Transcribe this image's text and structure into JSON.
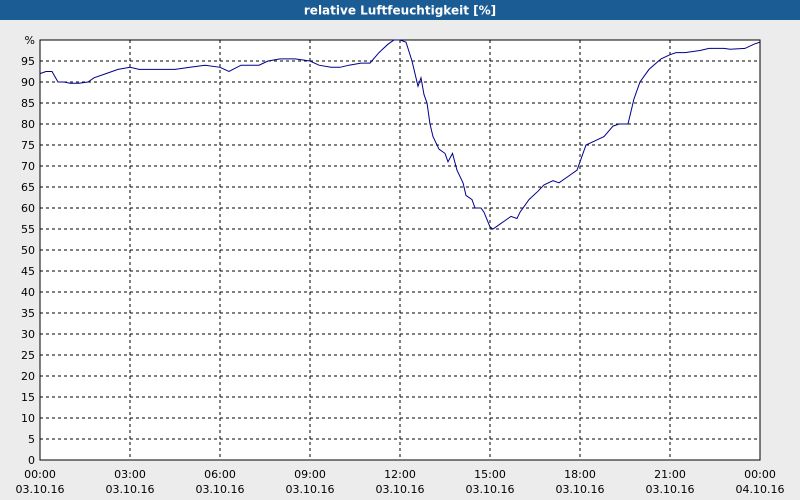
{
  "chart_data": {
    "type": "line",
    "title": "relative Luftfeuchtigkeit [%]",
    "x": [
      0,
      0.2,
      0.4,
      0.6,
      0.8,
      1.0,
      1.3,
      1.6,
      1.8,
      2.2,
      2.6,
      3.0,
      3.3,
      4.0,
      4.5,
      5.0,
      5.5,
      6.0,
      6.3,
      6.7,
      7.0,
      7.3,
      7.6,
      8.0,
      8.5,
      9.0,
      9.3,
      9.7,
      10.0,
      10.3,
      10.7,
      11.0,
      11.3,
      11.6,
      11.8,
      12.0,
      12.2,
      12.4,
      12.5,
      12.6,
      12.7,
      12.8,
      12.9,
      13.0,
      13.1,
      13.3,
      13.5,
      13.6,
      13.75,
      13.9,
      14.1,
      14.2,
      14.4,
      14.5,
      14.7,
      14.8,
      15.0,
      15.1,
      15.3,
      15.5,
      15.7,
      15.9,
      16.0,
      16.3,
      16.6,
      16.8,
      17.1,
      17.3,
      17.6,
      17.9,
      18.0,
      18.2,
      18.5,
      18.8,
      19.1,
      19.3,
      19.6,
      19.8,
      20.0,
      20.3,
      20.7,
      21.0,
      21.2,
      21.5,
      22.0,
      22.3,
      22.8,
      23.0,
      23.5,
      23.8,
      24.0
    ],
    "series": [
      {
        "color": "#00008b",
        "values": [
          92,
          92.5,
          92.5,
          90,
          90,
          89.7,
          89.7,
          90,
          91,
          92,
          93,
          93.5,
          93,
          93,
          93,
          93.5,
          94,
          93.5,
          92.5,
          94,
          94,
          94,
          95,
          95.5,
          95.5,
          95,
          94,
          93.5,
          93.5,
          94,
          94.5,
          94.5,
          97,
          99,
          100,
          100,
          99.5,
          95,
          92,
          89,
          91,
          87,
          85,
          80,
          77,
          74,
          73,
          71,
          73,
          69,
          66,
          63,
          62,
          60,
          60,
          59,
          55.5,
          55,
          56,
          57,
          58,
          57.5,
          59,
          62,
          64,
          65.5,
          66.5,
          66,
          67.5,
          69,
          71,
          75,
          76,
          77,
          79.5,
          80,
          80,
          86,
          90,
          93,
          95.5,
          96.5,
          97,
          97,
          97.5,
          98,
          98,
          97.8,
          98,
          99,
          99.5
        ]
      }
    ],
    "xlim": [
      0,
      24
    ],
    "xticks": [
      {
        "value": 0,
        "label": "00:00",
        "date": "03.10.16"
      },
      {
        "value": 3,
        "label": "03:00",
        "date": "03.10.16"
      },
      {
        "value": 6,
        "label": "06:00",
        "date": "03.10.16"
      },
      {
        "value": 9,
        "label": "09:00",
        "date": "03.10.16"
      },
      {
        "value": 12,
        "label": "12:00",
        "date": "03.10.16"
      },
      {
        "value": 15,
        "label": "15:00",
        "date": "03.10.16"
      },
      {
        "value": 18,
        "label": "18:00",
        "date": "03.10.16"
      },
      {
        "value": 21,
        "label": "21:00",
        "date": "03.10.16"
      },
      {
        "value": 24,
        "label": "00:00",
        "date": "04.10.16"
      }
    ],
    "ylim": [
      0,
      100
    ],
    "yticks": [
      0,
      5,
      10,
      15,
      20,
      25,
      30,
      35,
      40,
      45,
      50,
      55,
      60,
      65,
      70,
      75,
      80,
      85,
      90,
      95,
      {
        "value": 100,
        "label": "%"
      }
    ],
    "grid": true
  }
}
